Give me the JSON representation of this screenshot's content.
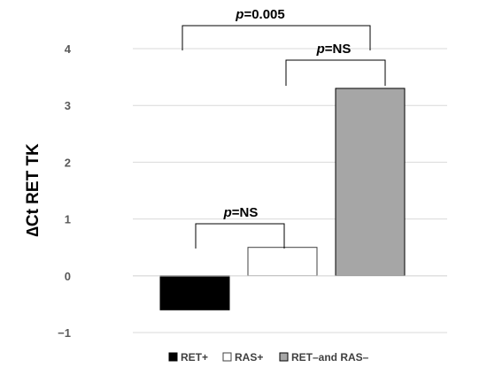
{
  "chart_data": {
    "type": "bar",
    "ylabel": "∆Ct RET TK",
    "ylim": [
      -1,
      4
    ],
    "yticks": [
      "−1",
      "0",
      "1",
      "2",
      "3",
      "4"
    ],
    "grid": "horizontal",
    "legend_position": "bottom",
    "series": [
      {
        "name": "RET+",
        "value": -0.6,
        "color": "#000000",
        "border": "#000000"
      },
      {
        "name": "RAS+",
        "value": 0.5,
        "color": "#ffffff",
        "border": "#404040"
      },
      {
        "name": "RET–and RAS–",
        "value": 3.3,
        "color": "#a6a6a6",
        "border": "#000000"
      }
    ],
    "annotations": [
      {
        "italic": "p",
        "text": "=0.005",
        "between": [
          "RET+",
          "RET–and RAS–"
        ]
      },
      {
        "italic": "p",
        "text": "=NS",
        "between": [
          "RAS+",
          "RET–and RAS–"
        ]
      },
      {
        "italic": "p",
        "text": "=NS",
        "between": [
          "RET+",
          "RAS+"
        ]
      }
    ]
  }
}
